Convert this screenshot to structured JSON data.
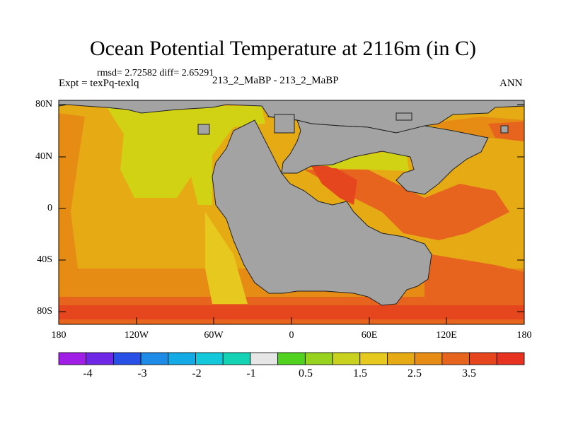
{
  "title": "Ocean Potential Temperature at 2116m (in C)",
  "stats": "rmsd= 2.72582 diff= 2.65291",
  "experiment": "Expt = texPq-texlq",
  "center_label": "213_2_MaBP - 213_2_MaBP",
  "season": "ANN",
  "lat_labels": [
    "80N",
    "40N",
    "0",
    "40S",
    "80S"
  ],
  "lon_labels": [
    "180",
    "120W",
    "60W",
    "0",
    "60E",
    "120E",
    "180"
  ],
  "colorbar": {
    "labels": [
      "-4",
      "-3",
      "-2",
      "-1",
      "0.5",
      "1.5",
      "2.5",
      "3.5"
    ],
    "colors": [
      "#a01ee6",
      "#6e28e6",
      "#2850e6",
      "#1e8ce6",
      "#14aae6",
      "#14c8dc",
      "#14d2b4",
      "#e6e6e6",
      "#50d21e",
      "#96d21e",
      "#c8d21e",
      "#e6c81e",
      "#e6aa14",
      "#e68c14",
      "#e6641e",
      "#e6461e",
      "#e6321e"
    ]
  },
  "colors": {
    "land": "#a3a3a3",
    "warm_deep": "#e6461e",
    "warm_mid": "#e6641e",
    "warm_orange": "#e68c14",
    "warm_light": "#e6aa14",
    "yellow": "#d2d214",
    "mustard": "#e6c81e"
  }
}
